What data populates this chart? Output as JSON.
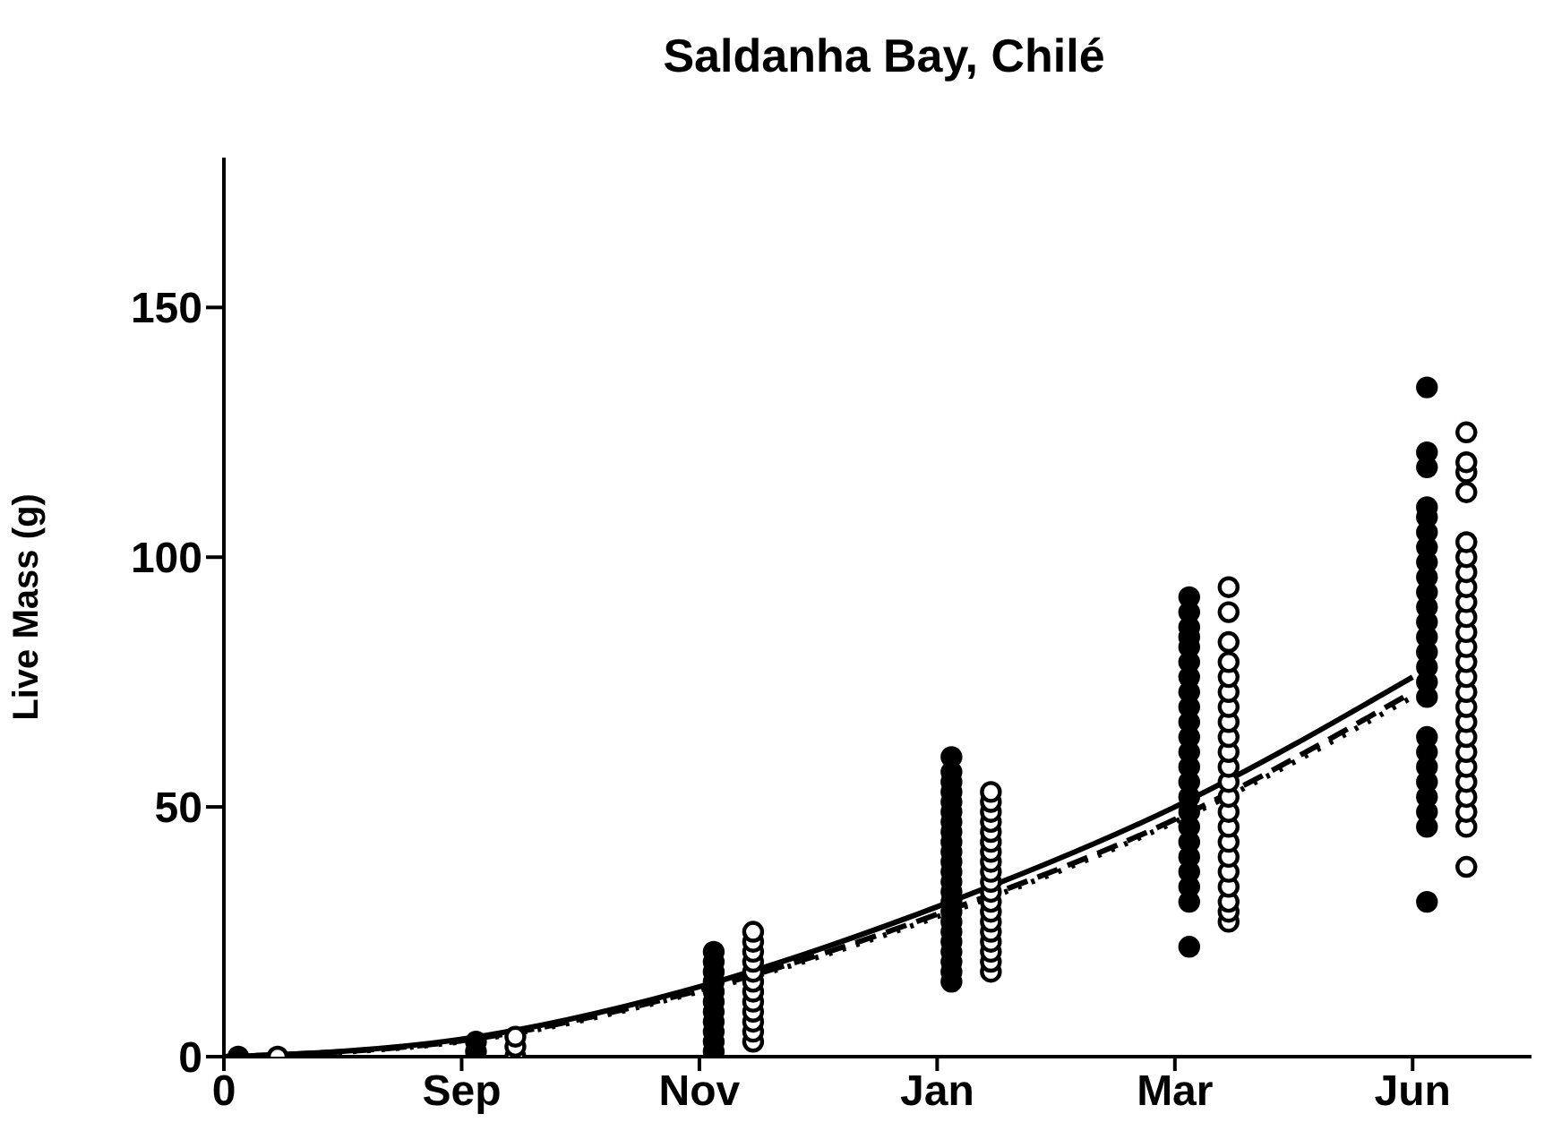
{
  "chart_data": {
    "type": "scatter",
    "title": "Saldanha Bay, Chilé",
    "ylabel": "Live Mass (g)",
    "categories": [
      "0",
      "Sep",
      "Nov",
      "Jan",
      "Mar",
      "Jun"
    ],
    "ylim": [
      0,
      180
    ],
    "yticks": [
      0,
      50,
      100,
      150
    ],
    "grid": false,
    "legend": false,
    "marker": "circle",
    "series": [
      {
        "color": "#000000",
        "x": [
          "0",
          "Sep",
          "Sep",
          "Nov",
          "Nov",
          "Nov",
          "Nov",
          "Nov",
          "Nov",
          "Nov",
          "Nov",
          "Nov",
          "Nov",
          "Nov",
          "Jan",
          "Jan",
          "Jan",
          "Jan",
          "Jan",
          "Jan",
          "Jan",
          "Jan",
          "Jan",
          "Jan",
          "Jan",
          "Jan",
          "Jan",
          "Jan",
          "Jan",
          "Jan",
          "Jan",
          "Jan",
          "Jan",
          "Jan",
          "Jan",
          "Jan",
          "Jan",
          "Mar",
          "Mar",
          "Mar",
          "Mar",
          "Mar",
          "Mar",
          "Mar",
          "Mar",
          "Mar",
          "Mar",
          "Mar",
          "Mar",
          "Mar",
          "Mar",
          "Mar",
          "Mar",
          "Mar",
          "Mar",
          "Mar",
          "Mar",
          "Mar",
          "Mar",
          "Mar",
          "Jun",
          "Jun",
          "Jun",
          "Jun",
          "Jun",
          "Jun",
          "Jun",
          "Jun",
          "Jun",
          "Jun",
          "Jun",
          "Jun",
          "Jun",
          "Jun",
          "Jun",
          "Jun",
          "Jun",
          "Jun",
          "Jun",
          "Jun",
          "Jun",
          "Jun",
          "Jun",
          "Jun",
          "Jun"
        ],
        "values": [
          0,
          1,
          3,
          1,
          3,
          5,
          7,
          9,
          11,
          13,
          15,
          17,
          19,
          21,
          15,
          17,
          19,
          21,
          23,
          25,
          27,
          29,
          31,
          33,
          35,
          37,
          39,
          41,
          43,
          45,
          47,
          49,
          51,
          53,
          55,
          57,
          60,
          22,
          31,
          34,
          37,
          40,
          43,
          46,
          49,
          52,
          55,
          58,
          61,
          64,
          67,
          70,
          73,
          76,
          79,
          82,
          84,
          86,
          89,
          92,
          31,
          46,
          49,
          52,
          55,
          58,
          61,
          64,
          72,
          75,
          78,
          81,
          84,
          87,
          90,
          93,
          96,
          99,
          102,
          105,
          108,
          110,
          118,
          121,
          134
        ]
      },
      {
        "color": "#000000",
        "marker": "circle-open",
        "x": [
          "0",
          "Sep",
          "Sep",
          "Sep",
          "Nov",
          "Nov",
          "Nov",
          "Nov",
          "Nov",
          "Nov",
          "Nov",
          "Nov",
          "Nov",
          "Nov",
          "Nov",
          "Nov",
          "Jan",
          "Jan",
          "Jan",
          "Jan",
          "Jan",
          "Jan",
          "Jan",
          "Jan",
          "Jan",
          "Jan",
          "Jan",
          "Jan",
          "Jan",
          "Jan",
          "Jan",
          "Jan",
          "Jan",
          "Jan",
          "Jan",
          "Mar",
          "Mar",
          "Mar",
          "Mar",
          "Mar",
          "Mar",
          "Mar",
          "Mar",
          "Mar",
          "Mar",
          "Mar",
          "Mar",
          "Mar",
          "Mar",
          "Mar",
          "Mar",
          "Mar",
          "Mar",
          "Mar",
          "Mar",
          "Mar",
          "Mar",
          "Jun",
          "Jun",
          "Jun",
          "Jun",
          "Jun",
          "Jun",
          "Jun",
          "Jun",
          "Jun",
          "Jun",
          "Jun",
          "Jun",
          "Jun",
          "Jun",
          "Jun",
          "Jun",
          "Jun",
          "Jun",
          "Jun",
          "Jun",
          "Jun",
          "Jun",
          "Jun",
          "Jun",
          "Jun"
        ],
        "values": [
          0,
          0,
          2,
          4,
          3,
          5,
          7,
          9,
          11,
          13,
          15,
          17,
          19,
          21,
          23,
          25,
          17,
          19,
          21,
          23,
          25,
          27,
          29,
          31,
          33,
          35,
          37,
          39,
          41,
          43,
          45,
          47,
          49,
          51,
          53,
          27,
          29,
          31,
          34,
          37,
          40,
          43,
          46,
          49,
          52,
          55,
          58,
          61,
          64,
          67,
          70,
          73,
          76,
          79,
          83,
          89,
          94,
          38,
          46,
          49,
          52,
          55,
          58,
          61,
          64,
          67,
          70,
          73,
          76,
          79,
          82,
          85,
          88,
          91,
          94,
          97,
          100,
          103,
          113,
          117,
          119,
          125
        ]
      },
      {
        "type": "line",
        "color": "#000000",
        "marker": "none",
        "line_style": "solid",
        "values": [
          0,
          3.5,
          14,
          30,
          50,
          76
        ]
      },
      {
        "type": "line",
        "color": "#000000",
        "marker": "none",
        "line_style": "dashed",
        "values": [
          0,
          3.2,
          13.3,
          28.5,
          47.5,
          73
        ]
      },
      {
        "type": "line",
        "color": "#000000",
        "marker": "none",
        "line_style": "dotted",
        "values": [
          0,
          3,
          13,
          28,
          47,
          72
        ]
      }
    ]
  }
}
